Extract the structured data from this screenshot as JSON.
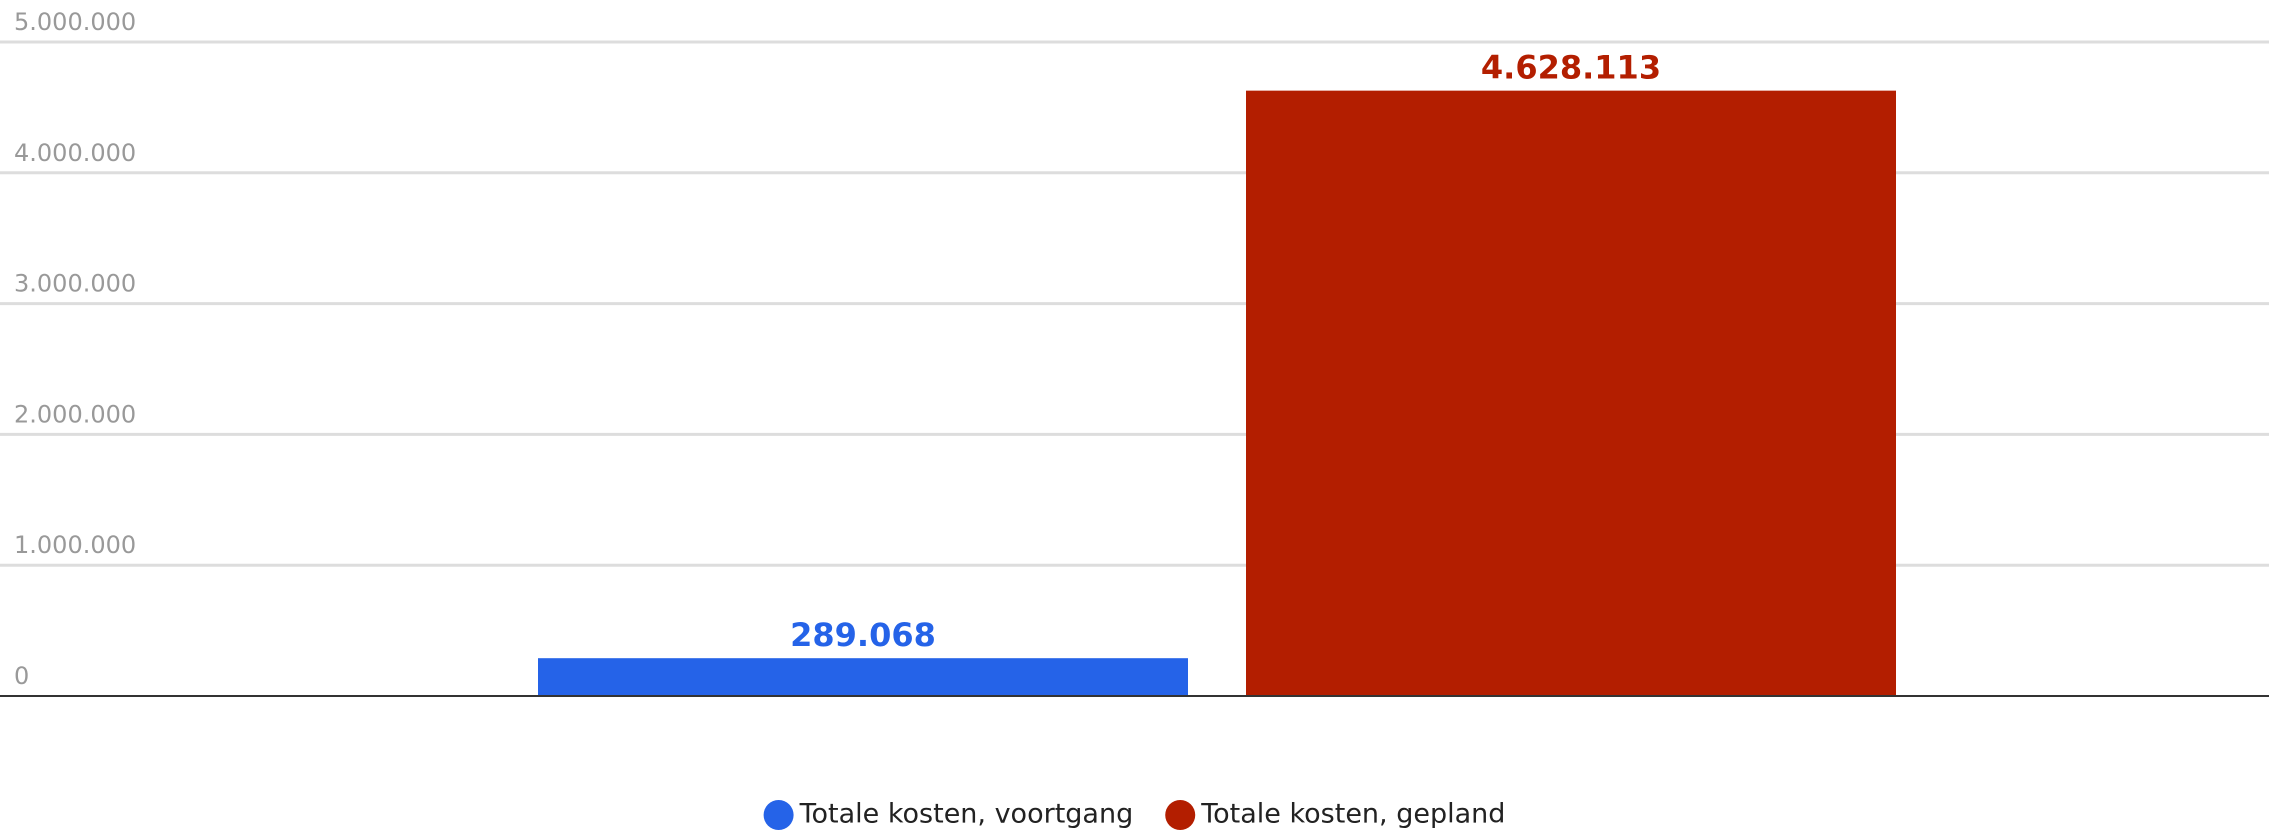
{
  "chart_data": {
    "type": "bar",
    "categories": [
      null
    ],
    "series": [
      {
        "name": "Totale kosten, voortgang",
        "color": "#2563e8",
        "values": [
          289068
        ],
        "value_labels": [
          "289.068"
        ]
      },
      {
        "name": "Totale kosten, gepland",
        "color": "#b31e00",
        "values": [
          4628113
        ],
        "value_labels": [
          "4.628.113"
        ]
      }
    ],
    "ylim": [
      0,
      5000000
    ],
    "yticks": [
      0,
      {
        "value": 1000000,
        "label": "1.000.000"
      },
      {
        "value": 2000000,
        "label": "2.000.000"
      },
      {
        "value": 3000000,
        "label": "3.000.000"
      },
      {
        "value": 4000000,
        "label": "4.000.000"
      },
      {
        "value": 5000000,
        "label": "5.000.000"
      }
    ],
    "grid": true,
    "legend": "bottom"
  }
}
